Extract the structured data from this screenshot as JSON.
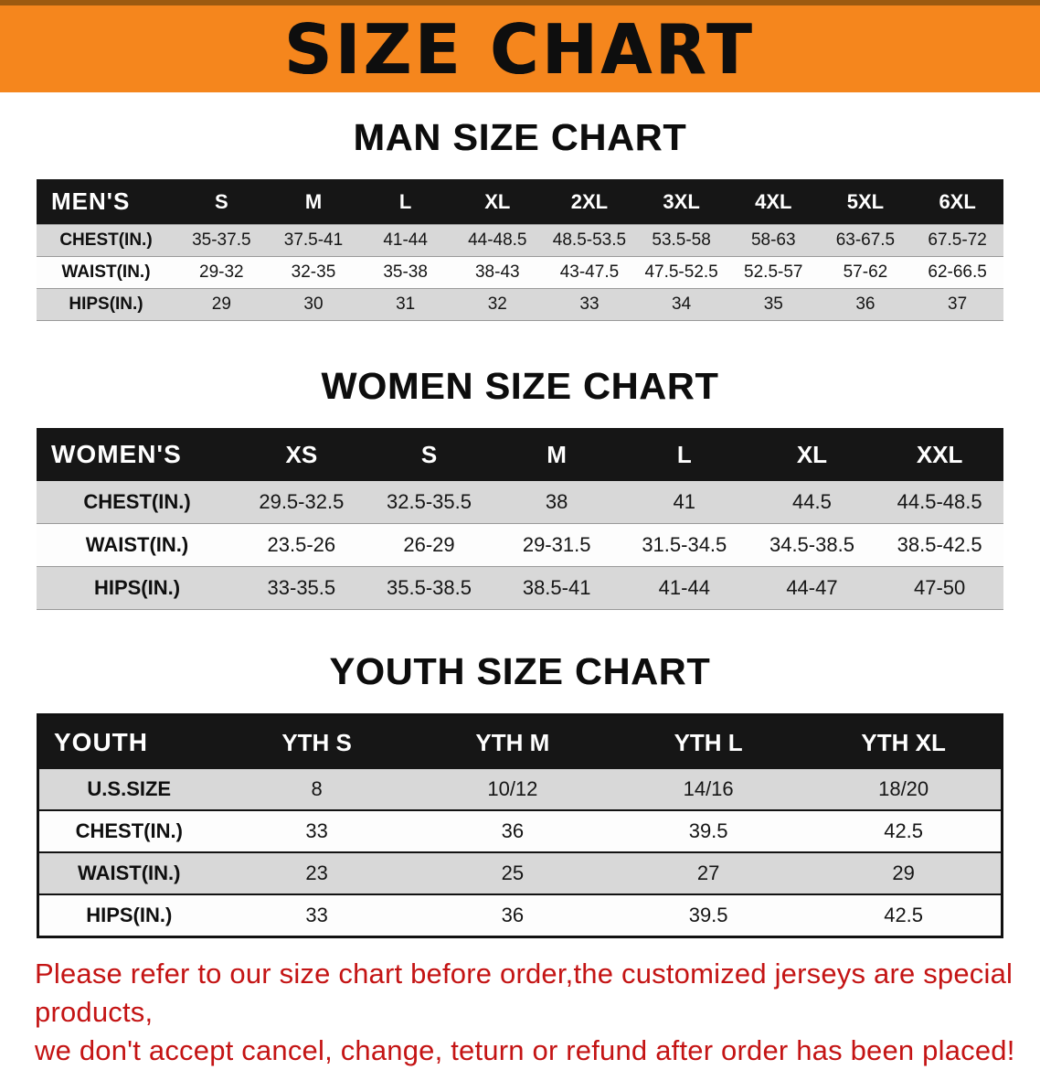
{
  "banner": {
    "title": "SIZE CHART"
  },
  "colors": {
    "banner_orange": "#f5861d",
    "header_black": "#161616",
    "row_gray": "#d8d8d8",
    "disclaimer_red": "#c41414"
  },
  "chart_data": [
    {
      "type": "table",
      "title": "MAN SIZE CHART",
      "header": [
        "MEN'S",
        "S",
        "M",
        "L",
        "XL",
        "2XL",
        "3XL",
        "4XL",
        "5XL",
        "6XL"
      ],
      "rows": [
        [
          "CHEST(IN.)",
          "35-37.5",
          "37.5-41",
          "41-44",
          "44-48.5",
          "48.5-53.5",
          "53.5-58",
          "58-63",
          "63-67.5",
          "67.5-72"
        ],
        [
          "WAIST(IN.)",
          "29-32",
          "32-35",
          "35-38",
          "38-43",
          "43-47.5",
          "47.5-52.5",
          "52.5-57",
          "57-62",
          "62-66.5"
        ],
        [
          "HIPS(IN.)",
          "29",
          "30",
          "31",
          "32",
          "33",
          "34",
          "35",
          "36",
          "37"
        ]
      ]
    },
    {
      "type": "table",
      "title": "WOMEN SIZE CHART",
      "header": [
        "WOMEN'S",
        "XS",
        "S",
        "M",
        "L",
        "XL",
        "XXL"
      ],
      "rows": [
        [
          "CHEST(IN.)",
          "29.5-32.5",
          "32.5-35.5",
          "38",
          "41",
          "44.5",
          "44.5-48.5"
        ],
        [
          "WAIST(IN.)",
          "23.5-26",
          "26-29",
          "29-31.5",
          "31.5-34.5",
          "34.5-38.5",
          "38.5-42.5"
        ],
        [
          "HIPS(IN.)",
          "33-35.5",
          "35.5-38.5",
          "38.5-41",
          "41-44",
          "44-47",
          "47-50"
        ]
      ]
    },
    {
      "type": "table",
      "title": "YOUTH SIZE CHART",
      "header": [
        "YOUTH",
        "YTH S",
        "YTH M",
        "YTH L",
        "YTH XL"
      ],
      "rows": [
        [
          "U.S.SIZE",
          "8",
          "10/12",
          "14/16",
          "18/20"
        ],
        [
          "CHEST(IN.)",
          "33",
          "36",
          "39.5",
          "42.5"
        ],
        [
          "WAIST(IN.)",
          "23",
          "25",
          "27",
          "29"
        ],
        [
          "HIPS(IN.)",
          "33",
          "36",
          "39.5",
          "42.5"
        ]
      ]
    }
  ],
  "disclaimer": {
    "line1": "Please refer to our size chart before order,the customized jerseys are special products,",
    "line2": "we don't accept cancel, change, teturn or refund after order has been placed!"
  }
}
